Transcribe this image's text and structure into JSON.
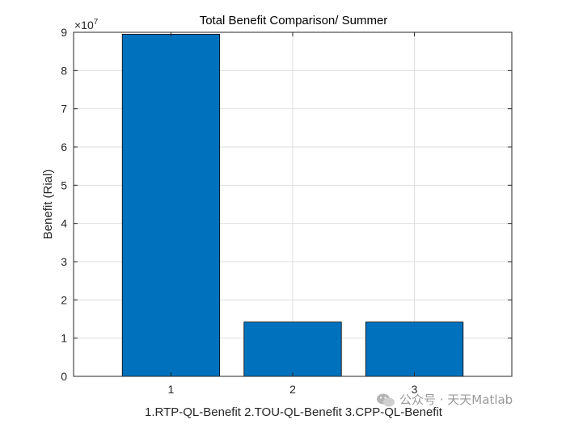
{
  "chart_data": {
    "type": "bar",
    "title": "Total Benefit Comparison/ Summer",
    "xlabel": "1.RTP-QL-Benefit 2.TOU-QL-Benefit 3.CPP-QL-Benefit",
    "ylabel": "Benefit (Rial)",
    "categories": [
      "1",
      "2",
      "3"
    ],
    "values": [
      89500000,
      14200000,
      14200000
    ],
    "ylim": [
      0,
      90000000
    ],
    "xlim": [
      0.2,
      3.8
    ],
    "y_ticks": [
      "0",
      "1",
      "2",
      "3",
      "4",
      "5",
      "6",
      "7",
      "8",
      "9"
    ],
    "y_exponent_base": "×10",
    "y_exponent_power": "7",
    "bar_color": "#0072bd",
    "grid": true
  },
  "watermark": {
    "text": "公众号 · 天天Matlab",
    "icon": "wechat-icon"
  }
}
